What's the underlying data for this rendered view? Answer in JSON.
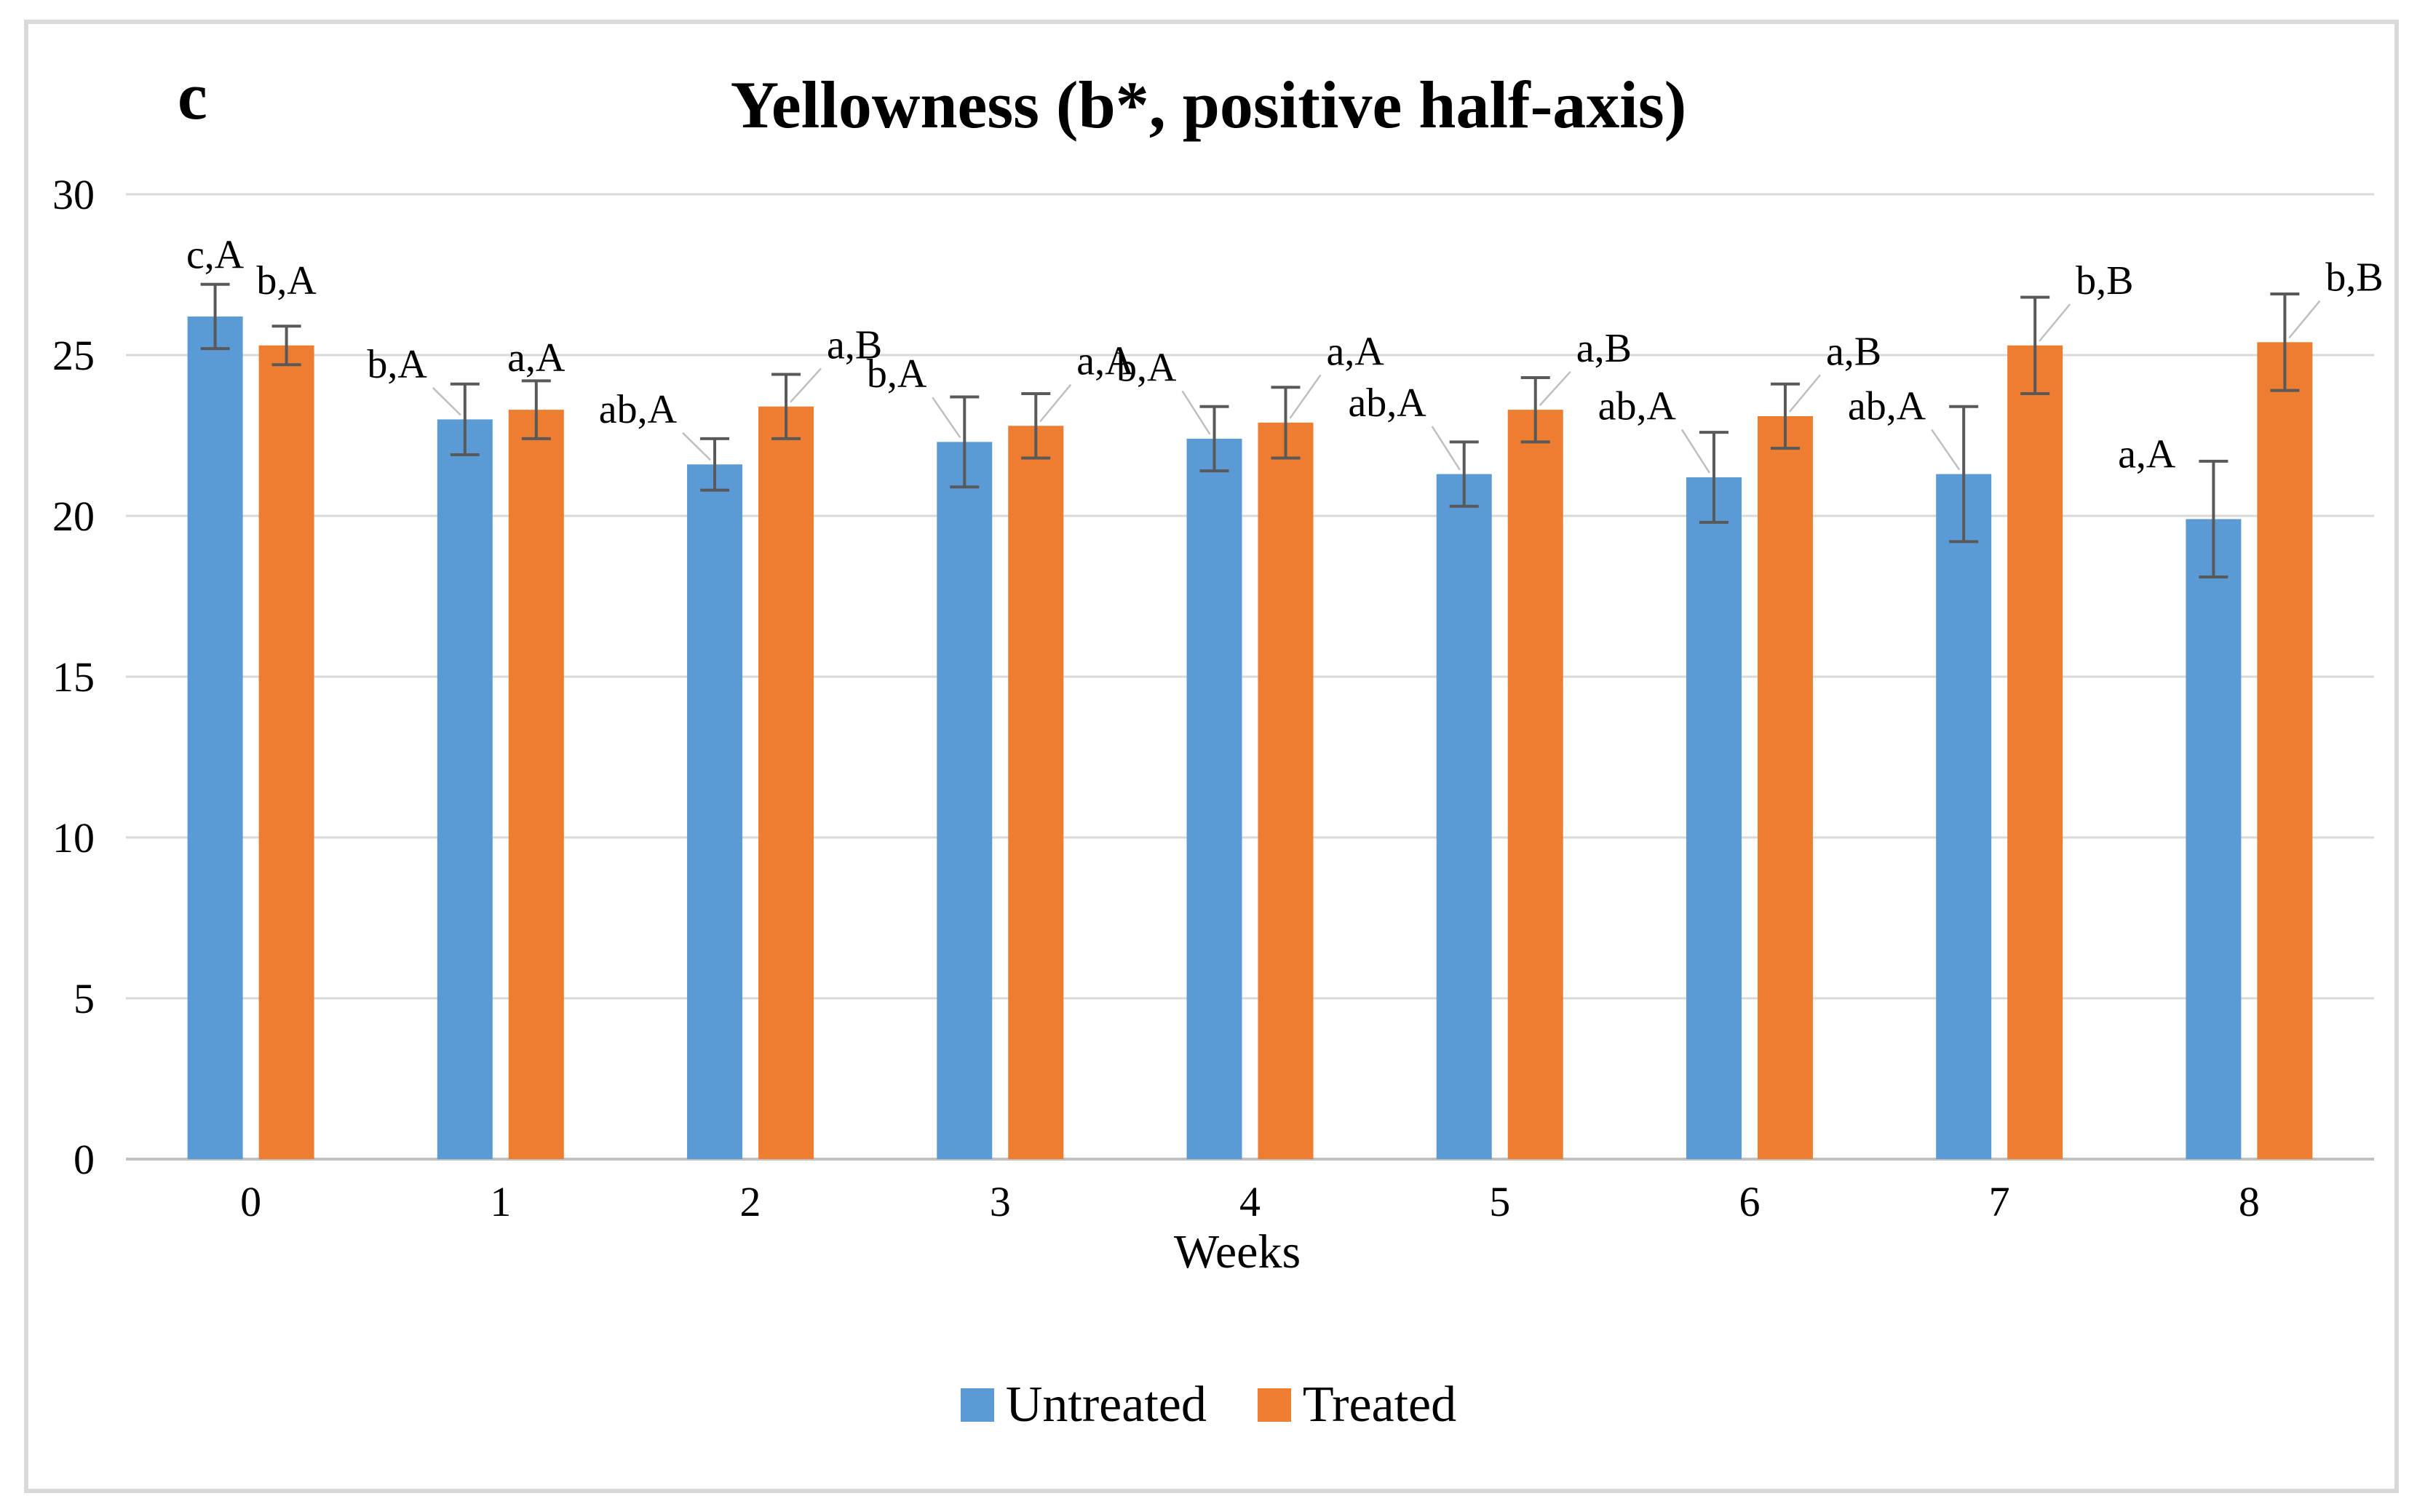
{
  "chart_data": {
    "type": "bar",
    "panel_label": "c",
    "title": "Yellowness (b*, positive half-axis)",
    "xlabel": "Weeks",
    "ylabel": "",
    "categories": [
      "0",
      "1",
      "2",
      "3",
      "4",
      "5",
      "6",
      "7",
      "8"
    ],
    "yticks": [
      0,
      5,
      10,
      15,
      20,
      25,
      30
    ],
    "ylim": [
      0,
      30
    ],
    "grid": true,
    "legend_position": "bottom-center",
    "series": [
      {
        "name": "Untreated",
        "color": "#5B9BD5",
        "values": [
          26.2,
          23.0,
          21.6,
          22.3,
          22.4,
          21.3,
          21.2,
          21.3,
          19.9
        ],
        "errors": [
          1.0,
          1.1,
          0.8,
          1.4,
          1.0,
          1.0,
          1.4,
          2.1,
          1.8
        ],
        "point_labels": [
          "c,A",
          "b,A",
          "ab,A",
          "b,A",
          "b,A",
          "ab,A",
          "ab,A",
          "ab,A",
          "a,A"
        ]
      },
      {
        "name": "Treated",
        "color": "#ED7D31",
        "values": [
          25.3,
          23.3,
          23.4,
          22.8,
          22.9,
          23.3,
          23.1,
          25.3,
          25.4
        ],
        "errors": [
          0.6,
          0.9,
          1.0,
          1.0,
          1.1,
          1.0,
          1.0,
          1.5,
          1.5
        ],
        "point_labels": [
          "b,A",
          "a,A",
          "a,B",
          "a,A",
          "a,A",
          "a,B",
          "a,B",
          "b,B",
          "b,B"
        ]
      }
    ],
    "layout": {
      "gridline_color": "#D9D9D9",
      "axis_line_color": "#C0C0C0",
      "error_bar_color": "#595959",
      "leader_line_color": "#BFBFBF",
      "untreated_label_y": [
        27.7,
        24.3,
        22.9,
        24.0,
        24.2,
        23.1,
        23.0,
        23.0,
        21.5
      ],
      "treated_label_y": [
        26.9,
        24.5,
        24.9,
        24.4,
        24.7,
        24.8,
        24.7,
        26.9,
        27.0
      ],
      "untreated_leader": [
        false,
        true,
        true,
        true,
        true,
        true,
        true,
        true,
        false
      ],
      "treated_leader": [
        false,
        false,
        true,
        true,
        true,
        true,
        true,
        true,
        true
      ]
    }
  }
}
